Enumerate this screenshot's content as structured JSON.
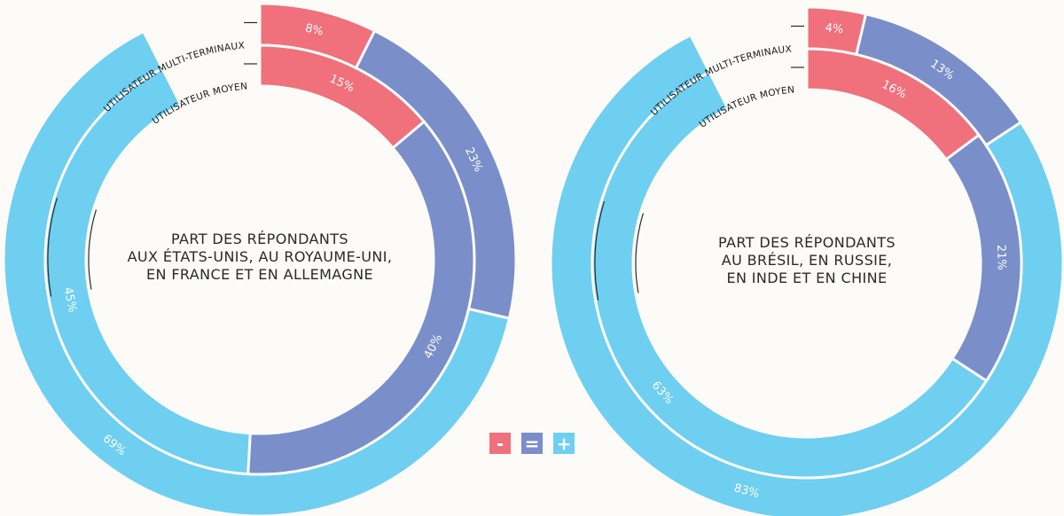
{
  "colors": {
    "minus": "#f0707b",
    "equal": "#7a8fc9",
    "plus": "#6ecff1",
    "background": "#fcfbf7",
    "leader": "#2a2a2a"
  },
  "legend": {
    "minus": "-",
    "equal": "=",
    "plus": "+"
  },
  "chart_data": [
    {
      "type": "pie",
      "center_label": [
        "PART DES RÉPONDANTS",
        "AUX ÉTATS-UNIS, AU ROYAUME-UNI,",
        "EN FRANCE ET EN ALLEMAGNE"
      ],
      "categories": [
        "-",
        "=",
        "+"
      ],
      "series": [
        {
          "name": "UTILISATEUR MULTI-TERMINAUX",
          "values": [
            8,
            23,
            69
          ],
          "labels": [
            "8%",
            "23%",
            "69%"
          ]
        },
        {
          "name": "UTILISATEUR MOYEN",
          "values": [
            15,
            40,
            45
          ],
          "labels": [
            "15%",
            "40%",
            "45%"
          ]
        }
      ]
    },
    {
      "type": "pie",
      "center_label": [
        "PART DES RÉPONDANTS",
        "AU BRÉSIL, EN RUSSIE,",
        "EN INDE ET EN CHINE"
      ],
      "categories": [
        "-",
        "=",
        "+"
      ],
      "series": [
        {
          "name": "UTILISATEUR MULTI-TERMINAUX",
          "values": [
            4,
            13,
            83
          ],
          "labels": [
            "4%",
            "13%",
            "83%"
          ]
        },
        {
          "name": "UTILISATEUR MOYEN",
          "values": [
            16,
            21,
            63
          ],
          "labels": [
            "16%",
            "21%",
            "63%"
          ]
        }
      ]
    }
  ]
}
